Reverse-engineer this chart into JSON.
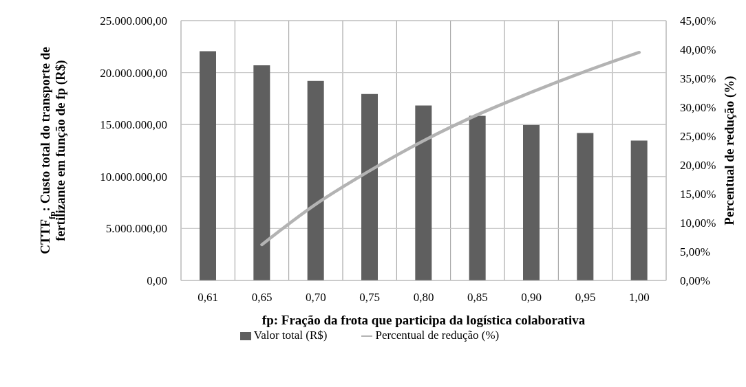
{
  "chart_data": {
    "type": "bar",
    "xlabel": "fp: Fração da frota que participa da logística colaborativa",
    "ylabel": "CTTF$_{fp}$: Custo total do transporte de fertilizante em função de fp (R$)",
    "y2label": "Percentual de redução (%)",
    "categories": [
      "0,61",
      "0,65",
      "0,70",
      "0,75",
      "0,80",
      "0,85",
      "0,90",
      "0,95",
      "1,00"
    ],
    "series": [
      {
        "name": "Valor total (R$)",
        "color": "#5f5f5f",
        "values": [
          22060000,
          20700000,
          19200000,
          17940000,
          16840000,
          15840000,
          14950000,
          14180000,
          13460000
        ]
      },
      {
        "name": "Percentual de redução (%)",
        "type": "line",
        "axis": "y2",
        "color": "#b3b3b3",
        "values": [
          null,
          6.2,
          13.2,
          19.0,
          24.2,
          28.7,
          32.6,
          36.2,
          39.5
        ]
      }
    ],
    "ylim": [
      0,
      25000000
    ],
    "yticks": [
      {
        "value": 0,
        "label": "0,00"
      },
      {
        "value": 5000000,
        "label": "5.000.000,00"
      },
      {
        "value": 10000000,
        "label": "10.000.000,00"
      },
      {
        "value": 15000000,
        "label": "15.000.000,00"
      },
      {
        "value": 20000000,
        "label": "20.000.000,00"
      },
      {
        "value": 25000000,
        "label": "25.000.000,00"
      }
    ],
    "y2lim": [
      0,
      45
    ],
    "y2ticks": [
      {
        "value": 0,
        "label": "0,00%"
      },
      {
        "value": 5,
        "label": "5,00%"
      },
      {
        "value": 10,
        "label": "10,00%"
      },
      {
        "value": 15,
        "label": "15,00%"
      },
      {
        "value": 20,
        "label": "20,00%"
      },
      {
        "value": 25,
        "label": "25,00%"
      },
      {
        "value": 30,
        "label": "30,00%"
      },
      {
        "value": 35,
        "label": "35,00%"
      },
      {
        "value": 40,
        "label": "40,00%"
      },
      {
        "value": 45,
        "label": "45,00%"
      }
    ],
    "grid": true,
    "legend": "bottom",
    "marker": "none",
    "line_style": "solid"
  }
}
